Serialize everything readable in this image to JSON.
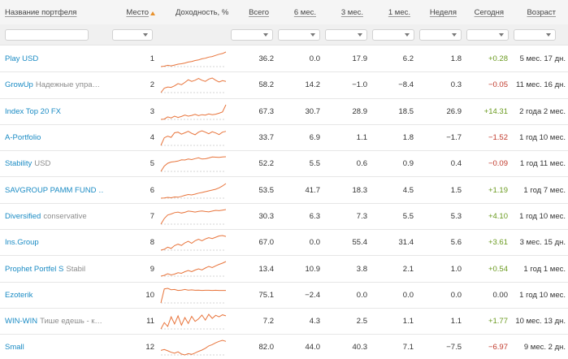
{
  "header": {
    "name": "Название портфеля",
    "rank": "Место",
    "chart": "Доходность, %",
    "total": "Всего",
    "m6": "6 мес.",
    "m3": "3 мес.",
    "m1": "1 мес.",
    "week": "Неделя",
    "today": "Сегодня",
    "age": "Возраст"
  },
  "sort": {
    "column": "rank",
    "direction": "ascending",
    "color": "#e8912d"
  },
  "colors": {
    "link": "#1a8bc4",
    "positive": "#6a9a1f",
    "negative": "#c0392b",
    "spark_line": "#e8743b"
  },
  "rows": [
    {
      "name": "Play USD",
      "sub": "",
      "rank": "1",
      "total": "36.2",
      "m6": "0.0",
      "m3": "17.9",
      "m1": "6.2",
      "week": "1.8",
      "today": "+0.28",
      "today_sign": "pos",
      "age": "5 мес. 17 дн.",
      "spark": [
        0.1,
        0.3,
        0.8,
        0.5,
        0.9,
        1.4,
        1.6,
        2.0,
        2.5,
        2.8,
        3.3,
        3.6,
        4.2,
        4.5,
        5.1,
        5.4,
        6.0,
        6.6,
        7.0,
        7.8
      ]
    },
    {
      "name": "GrowUp",
      "sub": "Надежные управ…",
      "rank": "2",
      "total": "58.2",
      "m6": "14.2",
      "m3": "−1.0",
      "m1": "−8.4",
      "week": "0.3",
      "today": "−0.05",
      "today_sign": "neg",
      "age": "11 мес. 16 дн.",
      "spark": [
        0.5,
        2.5,
        3.0,
        2.8,
        3.5,
        4.5,
        4.0,
        5.0,
        6.2,
        5.5,
        6.0,
        6.8,
        6.0,
        5.5,
        6.5,
        7.0,
        6.0,
        5.2,
        5.8,
        5.5
      ]
    },
    {
      "name": "Index Top 20 FX",
      "sub": "",
      "rank": "3",
      "total": "67.3",
      "m6": "30.7",
      "m3": "28.9",
      "m1": "18.5",
      "week": "26.9",
      "today": "+14.31",
      "today_sign": "pos",
      "age": "2 года 2 мес.",
      "spark": [
        0.4,
        0.6,
        1.8,
        1.2,
        2.2,
        1.5,
        2.0,
        2.8,
        2.2,
        2.6,
        3.2,
        2.5,
        3.0,
        2.8,
        3.4,
        3.0,
        3.3,
        3.8,
        4.5,
        8.5
      ]
    },
    {
      "name": "A-Portfolio",
      "sub": "",
      "rank": "4",
      "total": "33.7",
      "m6": "6.9",
      "m3": "1.1",
      "m1": "1.8",
      "week": "−1.7",
      "today": "−1.52",
      "today_sign": "neg",
      "age": "1 год 10 мес.",
      "spark": [
        0.2,
        4.0,
        4.8,
        4.2,
        6.5,
        6.8,
        5.8,
        6.5,
        7.2,
        6.2,
        5.5,
        6.8,
        7.5,
        6.8,
        6.0,
        7.0,
        6.4,
        5.6,
        6.8,
        7.2
      ]
    },
    {
      "name": "Stability",
      "sub": "USD",
      "rank": "5",
      "total": "52.2",
      "m6": "5.5",
      "m3": "0.6",
      "m1": "0.9",
      "week": "0.4",
      "today": "−0.09",
      "today_sign": "neg",
      "age": "1 год 11 мес.",
      "spark": [
        0.2,
        2.8,
        4.2,
        4.8,
        5.0,
        5.3,
        5.9,
        5.8,
        6.3,
        6.0,
        6.5,
        6.9,
        6.3,
        6.4,
        6.8,
        7.3,
        7.2,
        7.1,
        7.3,
        7.4
      ]
    },
    {
      "name": "SAVGROUP PAMM FUND …",
      "sub": "",
      "rank": "6",
      "total": "53.5",
      "m6": "41.7",
      "m3": "18.3",
      "m1": "4.5",
      "week": "1.5",
      "today": "+1.19",
      "today_sign": "pos",
      "age": "1 год 7 мес.",
      "spark": [
        0.4,
        0.5,
        0.8,
        0.6,
        1.0,
        0.9,
        1.3,
        1.8,
        2.2,
        2.0,
        2.4,
        2.9,
        3.2,
        3.6,
        4.0,
        4.4,
        4.8,
        5.5,
        6.4,
        7.6
      ]
    },
    {
      "name": "Diversified",
      "sub": "conservative",
      "rank": "7",
      "total": "30.3",
      "m6": "6.3",
      "m3": "7.3",
      "m1": "5.5",
      "week": "5.3",
      "today": "+4.10",
      "today_sign": "pos",
      "age": "1 год 10 мес.",
      "spark": [
        0.3,
        3.2,
        5.0,
        5.5,
        6.2,
        6.5,
        6.0,
        6.4,
        7.0,
        6.8,
        6.5,
        6.9,
        7.1,
        6.8,
        6.6,
        7.0,
        7.4,
        7.2,
        7.5,
        7.8
      ]
    },
    {
      "name": "Ins.Group",
      "sub": "",
      "rank": "8",
      "total": "67.0",
      "m6": "0.0",
      "m3": "55.4",
      "m1": "31.4",
      "week": "5.6",
      "today": "+3.61",
      "today_sign": "pos",
      "age": "3 мес. 15 дн.",
      "spark": [
        0.4,
        0.8,
        1.8,
        1.2,
        2.5,
        3.2,
        2.6,
        3.8,
        4.5,
        3.6,
        4.8,
        5.5,
        4.8,
        5.6,
        6.2,
        5.8,
        6.4,
        7.0,
        7.2,
        6.8
      ]
    },
    {
      "name": "Prophet Portfel S",
      "sub": "Stabil",
      "rank": "9",
      "total": "13.4",
      "m6": "10.9",
      "m3": "3.8",
      "m1": "2.1",
      "week": "1.0",
      "today": "+0.54",
      "today_sign": "pos",
      "age": "1 год 1 мес.",
      "spark": [
        0.8,
        1.2,
        2.0,
        1.4,
        1.8,
        2.5,
        2.2,
        3.0,
        3.6,
        3.0,
        3.8,
        4.4,
        3.9,
        4.8,
        5.6,
        5.0,
        5.9,
        6.6,
        7.2,
        8.0
      ]
    },
    {
      "name": "Ezoterik",
      "sub": "",
      "rank": "10",
      "total": "75.1",
      "m6": "−2.4",
      "m3": "0.0",
      "m1": "0.0",
      "week": "0.0",
      "today": "0.00",
      "today_sign": "zero",
      "age": "1 год 10 мес.",
      "spark": [
        0.0,
        7.2,
        7.5,
        6.8,
        6.9,
        6.4,
        6.6,
        6.9,
        6.6,
        6.7,
        6.5,
        6.6,
        6.4,
        6.5,
        6.5,
        6.4,
        6.5,
        6.4,
        6.4,
        6.4
      ]
    },
    {
      "name": "WIN-WIN",
      "sub": "Тише едешь - к…",
      "rank": "11",
      "total": "7.2",
      "m6": "4.3",
      "m3": "2.5",
      "m1": "1.1",
      "week": "1.1",
      "today": "+1.77",
      "today_sign": "pos",
      "age": "10 мес. 13 дн.",
      "spark": [
        2.0,
        4.5,
        3.0,
        6.8,
        4.0,
        7.2,
        3.5,
        6.5,
        4.2,
        7.0,
        5.0,
        6.0,
        7.5,
        5.5,
        7.8,
        6.2,
        7.4,
        6.8,
        7.6,
        7.2
      ]
    },
    {
      "name": "Small",
      "sub": "",
      "rank": "12",
      "total": "82.0",
      "m6": "44.0",
      "m3": "40.3",
      "m1": "7.1",
      "week": "−7.5",
      "today": "−6.97",
      "today_sign": "neg",
      "age": "9 мес. 2 дн.",
      "spark": [
        3.0,
        3.5,
        2.8,
        2.0,
        1.5,
        2.2,
        1.0,
        0.5,
        1.2,
        0.8,
        1.6,
        2.5,
        3.2,
        4.2,
        5.5,
        6.2,
        7.2,
        8.0,
        8.6,
        8.0
      ]
    }
  ]
}
